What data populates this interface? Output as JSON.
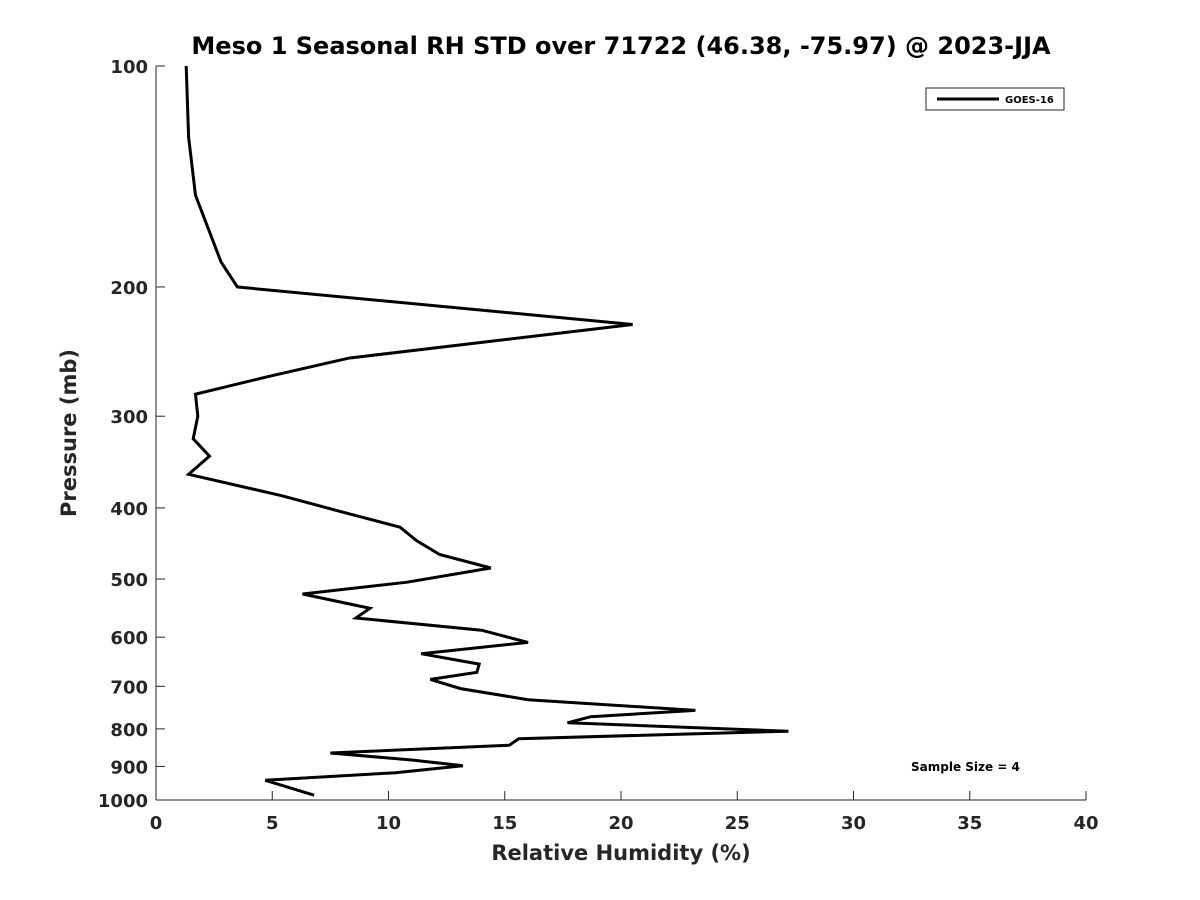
{
  "chart_data": {
    "type": "line",
    "title": "Meso 1 Seasonal RH STD over 71722 (46.38, -75.97) @ 2023-JJA",
    "xlabel": "Relative Humidity (%)",
    "ylabel": "Pressure (mb)",
    "xlim": [
      0,
      40
    ],
    "ylim": [
      1000,
      100
    ],
    "yscale": "log",
    "xticks": [
      0,
      5,
      10,
      15,
      20,
      25,
      30,
      35,
      40
    ],
    "yticks": [
      100,
      200,
      300,
      400,
      500,
      600,
      700,
      800,
      900,
      1000
    ],
    "grid": false,
    "legend_position": "top-right",
    "annotation": "Sample Size = 4",
    "line_color": "#000000",
    "series": [
      {
        "name": "GOES-16",
        "points": [
          [
            1.3,
            100
          ],
          [
            1.4,
            125
          ],
          [
            1.7,
            150
          ],
          [
            2.8,
            185
          ],
          [
            3.5,
            200
          ],
          [
            20.5,
            225
          ],
          [
            8.3,
            250
          ],
          [
            4.8,
            265
          ],
          [
            1.7,
            280
          ],
          [
            1.8,
            300
          ],
          [
            1.6,
            322
          ],
          [
            2.3,
            340
          ],
          [
            1.4,
            360
          ],
          [
            5.4,
            385
          ],
          [
            8.0,
            405
          ],
          [
            10.5,
            425
          ],
          [
            11.2,
            443
          ],
          [
            12.2,
            463
          ],
          [
            14.4,
            483
          ],
          [
            10.8,
            505
          ],
          [
            6.3,
            524
          ],
          [
            9.2,
            548
          ],
          [
            8.6,
            565
          ],
          [
            14.0,
            587
          ],
          [
            16.0,
            610
          ],
          [
            11.4,
            632
          ],
          [
            13.9,
            653
          ],
          [
            13.8,
            670
          ],
          [
            11.8,
            685
          ],
          [
            13.1,
            705
          ],
          [
            16.0,
            730
          ],
          [
            23.2,
            755
          ],
          [
            18.7,
            770
          ],
          [
            17.7,
            785
          ],
          [
            27.2,
            806
          ],
          [
            15.6,
            825
          ],
          [
            15.2,
            842
          ],
          [
            7.5,
            863
          ],
          [
            11.0,
            882
          ],
          [
            13.2,
            898
          ],
          [
            10.3,
            918
          ],
          [
            4.7,
            940
          ],
          [
            6.8,
            985
          ]
        ]
      }
    ]
  }
}
